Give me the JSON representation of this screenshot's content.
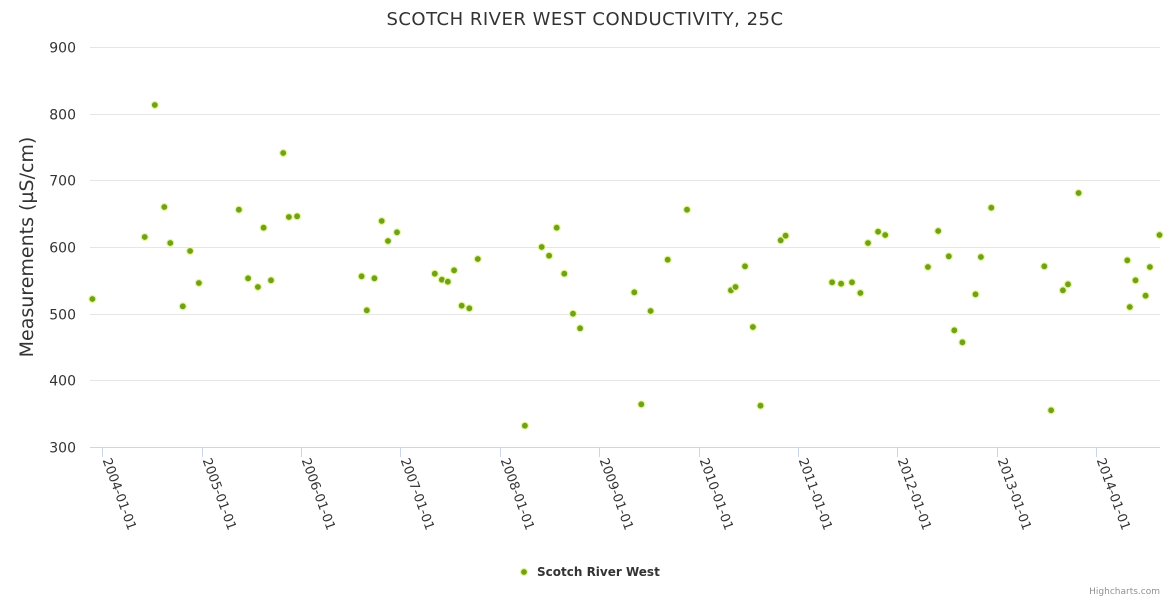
{
  "chart_data": {
    "type": "scatter",
    "title": "SCOTCH RIVER WEST CONDUCTIVITY, 25C",
    "xlabel": "",
    "ylabel": "Measurements (µS/cm)",
    "ylim": [
      300,
      900
    ],
    "yticks": [
      300,
      400,
      500,
      600,
      700,
      800,
      900
    ],
    "xlim": [
      "2003-11-17",
      "2014-08-23"
    ],
    "xticks": [
      "2004-01-01",
      "2005-01-01",
      "2006-01-01",
      "2007-01-01",
      "2008-01-01",
      "2009-01-01",
      "2010-01-01",
      "2011-01-01",
      "2012-01-01",
      "2013-01-01",
      "2014-01-01"
    ],
    "legend": "bottom-center",
    "credit": "Highcharts.com",
    "series": [
      {
        "name": "Scotch River West",
        "color": "#6ea21b",
        "points": [
          [
            "2003-11-26",
            522
          ],
          [
            "2004-06-05",
            615
          ],
          [
            "2004-07-12",
            813
          ],
          [
            "2004-08-16",
            660
          ],
          [
            "2004-09-07",
            606
          ],
          [
            "2004-10-23",
            511
          ],
          [
            "2004-11-19",
            594
          ],
          [
            "2004-12-21",
            546
          ],
          [
            "2005-05-17",
            656
          ],
          [
            "2005-06-20",
            553
          ],
          [
            "2005-07-26",
            540
          ],
          [
            "2005-08-16",
            629
          ],
          [
            "2005-09-12",
            550
          ],
          [
            "2005-10-27",
            741
          ],
          [
            "2005-11-17",
            645
          ],
          [
            "2005-12-17",
            646
          ],
          [
            "2006-08-11",
            556
          ],
          [
            "2006-08-30",
            505
          ],
          [
            "2006-09-27",
            553
          ],
          [
            "2006-10-24",
            639
          ],
          [
            "2006-11-16",
            609
          ],
          [
            "2006-12-19",
            622
          ],
          [
            "2007-05-07",
            560
          ],
          [
            "2007-06-02",
            551
          ],
          [
            "2007-06-24",
            548
          ],
          [
            "2007-07-17",
            565
          ],
          [
            "2007-08-14",
            512
          ],
          [
            "2007-09-11",
            508
          ],
          [
            "2007-10-12",
            582
          ],
          [
            "2008-04-02",
            332
          ],
          [
            "2008-06-03",
            600
          ],
          [
            "2008-06-30",
            587
          ],
          [
            "2008-07-28",
            629
          ],
          [
            "2008-08-25",
            560
          ],
          [
            "2008-09-26",
            500
          ],
          [
            "2008-10-22",
            478
          ],
          [
            "2009-05-09",
            532
          ],
          [
            "2009-06-04",
            364
          ],
          [
            "2009-07-08",
            504
          ],
          [
            "2009-09-09",
            581
          ],
          [
            "2009-11-19",
            656
          ],
          [
            "2010-04-29",
            535
          ],
          [
            "2010-05-16",
            540
          ],
          [
            "2010-06-20",
            571
          ],
          [
            "2010-07-19",
            480
          ],
          [
            "2010-08-16",
            362
          ],
          [
            "2010-10-29",
            610
          ],
          [
            "2010-11-16",
            617
          ],
          [
            "2011-05-06",
            547
          ],
          [
            "2011-06-08",
            545
          ],
          [
            "2011-07-18",
            547
          ],
          [
            "2011-08-18",
            531
          ],
          [
            "2011-09-15",
            606
          ],
          [
            "2011-10-22",
            623
          ],
          [
            "2011-11-17",
            618
          ],
          [
            "2012-04-22",
            570
          ],
          [
            "2012-05-30",
            624
          ],
          [
            "2012-07-08",
            586
          ],
          [
            "2012-07-28",
            475
          ],
          [
            "2012-08-27",
            457
          ],
          [
            "2012-10-14",
            529
          ],
          [
            "2012-11-03",
            585
          ],
          [
            "2012-12-11",
            659
          ],
          [
            "2013-06-24",
            571
          ],
          [
            "2013-07-19",
            355
          ],
          [
            "2013-08-31",
            535
          ],
          [
            "2013-09-19",
            544
          ],
          [
            "2013-10-28",
            681
          ],
          [
            "2014-04-25",
            580
          ],
          [
            "2014-05-04",
            510
          ],
          [
            "2014-05-25",
            550
          ],
          [
            "2014-07-01",
            527
          ],
          [
            "2014-07-17",
            570
          ],
          [
            "2014-08-21",
            618
          ]
        ]
      }
    ]
  }
}
